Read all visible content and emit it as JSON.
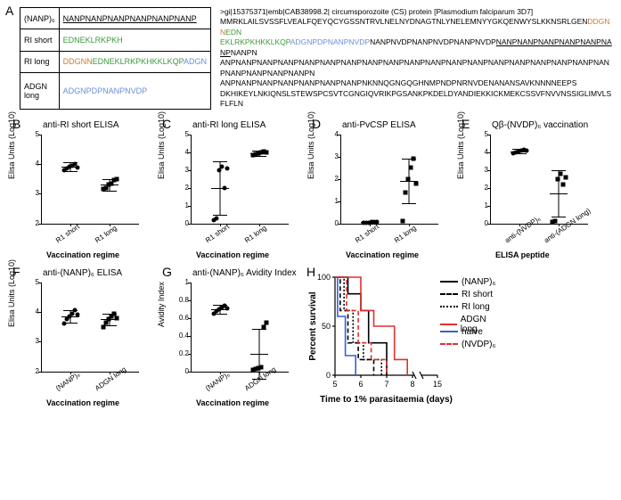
{
  "panelA": {
    "label": "A",
    "table": {
      "rows": [
        {
          "name": "(NANP)₆",
          "seq": [
            {
              "text": "NANPNANPNANPNANPNANPNANP",
              "underline": true,
              "color": "#000000"
            }
          ]
        },
        {
          "name": "RI short",
          "seq": [
            {
              "text": "EDNEKLRKPKH",
              "color": "#3a9a3a"
            }
          ]
        },
        {
          "name": "RI long",
          "seq": [
            {
              "text": "DDGNN",
              "color": "#cc7a29"
            },
            {
              "text": "EDNEKLRKPKHKKLKQP",
              "color": "#3a9a3a"
            },
            {
              "text": "ADGN",
              "color": "#6a8fd8"
            }
          ]
        },
        {
          "name": "ADGN long",
          "seq": [
            {
              "text": "ADGNPDPNANPNVDP",
              "color": "#6a8fd8"
            }
          ]
        }
      ]
    },
    "protein": {
      "header": ">gi|15375371|emb|CAB38998.2| circumsporozoite (CS) protein [Plasmodium falciparum 3D7]",
      "segments": [
        {
          "text": "MMRKLAILSVSSFLVEALFQEYQCYGSSNTRVLNELNYDNAGTNLYNELEMNYYGKQENWYSLKKNSRLGEN",
          "color": "#000000"
        },
        {
          "text": "DDGNN",
          "color": "#cc7a29"
        },
        {
          "text": "EDN",
          "color": "#3a9a3a",
          "break": true
        },
        {
          "text": "EKLRKPKHKKLKQP",
          "color": "#3a9a3a"
        },
        {
          "text": "ADGNPDPNANPNVDP",
          "color": "#6a8fd8"
        },
        {
          "text": "NANPNVDPNANPNVDPNANPNVDP",
          "color": "#000000"
        },
        {
          "text": "NANPNANPNANPNANPNANPNANP",
          "color": "#000000",
          "underline": true
        },
        {
          "text": "NANPN",
          "color": "#000000",
          "break": true
        },
        {
          "text": "ANPNANPNANPNANPNANPNANPNANPNANPNANPNANPNANPNANPNANPNANPNANPNANPNANPNANPNANPNANPNANPNANPNANPN",
          "color": "#000000",
          "break": true
        },
        {
          "text": "ANPNANPNANPNANPNANPNANPNANPNKNNQGNGQGHNMPNDPNRNVDENANANSAVKNNNNEEPS",
          "color": "#000000",
          "break": true
        },
        {
          "text": "DKHIKEYLNKIQNSLSTEWSPCSVTCGNGIQVRIKPGSANKPKDELDYANDIEKKICKMEKCSSVFNVVNSSIGLIMVLSFLFLN",
          "color": "#000000"
        }
      ]
    }
  },
  "scatterCharts": [
    {
      "id": "B",
      "title": "anti-RI short ELISA",
      "ylabel": "Elisa Units (Log10)",
      "xlabel": "Vaccination regime",
      "ymin": 2,
      "ymax": 5,
      "yticks": [
        2,
        3,
        4,
        5
      ],
      "categories": [
        "R1 short",
        "R1 long"
      ],
      "groups": [
        {
          "cat": 0,
          "marker": "circle",
          "mean": 3.9,
          "sd": 0.15,
          "points": [
            3.8,
            3.85,
            3.9,
            3.95,
            4.0,
            3.88
          ]
        },
        {
          "cat": 1,
          "marker": "square",
          "mean": 3.3,
          "sd": 0.2,
          "points": [
            3.15,
            3.2,
            3.3,
            3.35,
            3.45,
            3.5
          ]
        }
      ]
    },
    {
      "id": "C",
      "title": "anti-RI long ELISA",
      "ylabel": "Elisa Units (Log10)",
      "xlabel": "Vaccination regime",
      "ymin": 0,
      "ymax": 5,
      "yticks": [
        0,
        1,
        2,
        3,
        4,
        5
      ],
      "categories": [
        "R1 short",
        "R1 long"
      ],
      "groups": [
        {
          "cat": 0,
          "marker": "circle",
          "mean": 2.0,
          "sd": 1.5,
          "points": [
            0.2,
            0.3,
            3.0,
            3.2,
            2.0,
            3.1
          ]
        },
        {
          "cat": 1,
          "marker": "square",
          "mean": 3.95,
          "sd": 0.15,
          "points": [
            3.85,
            3.9,
            3.95,
            4.0,
            4.05,
            3.98
          ]
        }
      ]
    },
    {
      "id": "D",
      "title": "anti-PvCSP ELISA",
      "ylabel": "Elisa Units (Log10)",
      "xlabel": "Vaccination regime",
      "ymin": 0,
      "ymax": 4,
      "yticks": [
        0,
        1,
        2,
        3,
        4
      ],
      "categories": [
        "R1 short",
        "R1 long"
      ],
      "groups": [
        {
          "cat": 0,
          "marker": "circle",
          "mean": 0.05,
          "sd": 0.05,
          "points": [
            0.02,
            0.03,
            0.04,
            0.05,
            0.06,
            0.07
          ]
        },
        {
          "cat": 1,
          "marker": "square",
          "mean": 1.9,
          "sd": 1.0,
          "points": [
            0.1,
            1.4,
            2.0,
            2.5,
            2.9,
            1.8
          ]
        }
      ]
    },
    {
      "id": "E",
      "title": "Qβ-(NVDP)₆ vaccination",
      "ylabel": "Elisa Units (Log10)",
      "xlabel": "ELISA peptide",
      "ymin": 0,
      "ymax": 5,
      "yticks": [
        0,
        1,
        2,
        3,
        4,
        5
      ],
      "categories": [
        "anti-(NVDP)₆",
        "anti-(ADGN long)"
      ],
      "groups": [
        {
          "cat": 0,
          "marker": "circle",
          "mean": 4.05,
          "sd": 0.12,
          "points": [
            3.95,
            4.0,
            4.05,
            4.1,
            4.12,
            4.08
          ]
        },
        {
          "cat": 1,
          "marker": "square",
          "mean": 1.7,
          "sd": 1.3,
          "points": [
            0.1,
            0.15,
            2.5,
            2.8,
            2.2,
            2.6
          ]
        }
      ]
    },
    {
      "id": "F",
      "title": "anti-(NANP)₆ ELISA",
      "ylabel": "Elisa Units (Log10)",
      "xlabel": "Vaccination regime",
      "ymin": 2,
      "ymax": 5,
      "yticks": [
        2,
        3,
        4,
        5
      ],
      "categories": [
        "(NANP)₆",
        "ADGN long"
      ],
      "groups": [
        {
          "cat": 0,
          "marker": "circle",
          "mean": 3.85,
          "sd": 0.2,
          "points": [
            3.6,
            3.75,
            3.85,
            3.95,
            4.05,
            3.9
          ]
        },
        {
          "cat": 1,
          "marker": "square",
          "mean": 3.75,
          "sd": 0.2,
          "points": [
            3.5,
            3.65,
            3.75,
            3.85,
            3.95,
            3.8
          ]
        }
      ]
    },
    {
      "id": "G",
      "title": "anti-(NANP)₆ Avidity Index",
      "ylabel": "Avidity Index",
      "xlabel": "Vaccination regime",
      "ymin": 0,
      "ymax": 1,
      "yticks": [
        0,
        0.2,
        0.4,
        0.6,
        0.8,
        1.0
      ],
      "categories": [
        "(NANP)₆",
        "ADGN long"
      ],
      "groups": [
        {
          "cat": 0,
          "marker": "circle",
          "mean": 0.7,
          "sd": 0.05,
          "points": [
            0.65,
            0.68,
            0.7,
            0.72,
            0.74,
            0.71
          ]
        },
        {
          "cat": 1,
          "marker": "square",
          "mean": 0.2,
          "sd": 0.28,
          "points": [
            0.02,
            0.03,
            0.04,
            0.05,
            0.5,
            0.55
          ]
        }
      ]
    }
  ],
  "survival": {
    "id": "H",
    "ylabel": "Percent survival",
    "xlabel": "Time to 1% parasitaemia (days)",
    "xmin": 5,
    "xmax": 15,
    "xbreak_from": 8,
    "xbreak_to": 15,
    "xticks": [
      5,
      6,
      7,
      8,
      15
    ],
    "yticks": [
      0,
      50,
      100
    ],
    "series": [
      {
        "name": "(NANP)₆",
        "color": "#000000",
        "dash": "solid",
        "points": [
          [
            5,
            100
          ],
          [
            5.5,
            100
          ],
          [
            5.5,
            83
          ],
          [
            6.0,
            83
          ],
          [
            6.0,
            66
          ],
          [
            6.3,
            66
          ],
          [
            6.3,
            33
          ],
          [
            7.0,
            33
          ],
          [
            7.0,
            0
          ]
        ]
      },
      {
        "name": "RI short",
        "color": "#000000",
        "dash": "dash",
        "points": [
          [
            5,
            100
          ],
          [
            5.2,
            100
          ],
          [
            5.2,
            66
          ],
          [
            5.5,
            66
          ],
          [
            5.5,
            33
          ],
          [
            5.9,
            33
          ],
          [
            5.9,
            16
          ],
          [
            6.5,
            16
          ],
          [
            6.5,
            0
          ]
        ]
      },
      {
        "name": "RI long",
        "color": "#000000",
        "dash": "dot",
        "points": [
          [
            5,
            100
          ],
          [
            5.35,
            100
          ],
          [
            5.35,
            66
          ],
          [
            5.7,
            66
          ],
          [
            5.7,
            33
          ],
          [
            6.1,
            33
          ],
          [
            6.1,
            16
          ],
          [
            6.8,
            16
          ],
          [
            6.8,
            0
          ]
        ]
      },
      {
        "name": "ADGN long",
        "color": "#e03030",
        "dash": "solid",
        "points": [
          [
            5,
            100
          ],
          [
            6.0,
            100
          ],
          [
            6.0,
            66
          ],
          [
            6.5,
            66
          ],
          [
            6.5,
            50
          ],
          [
            7.3,
            50
          ],
          [
            7.3,
            16
          ],
          [
            7.8,
            16
          ],
          [
            7.8,
            0
          ]
        ]
      },
      {
        "name": "naive",
        "color": "#3a5fd0",
        "dash": "solid",
        "points": [
          [
            5,
            100
          ],
          [
            5.1,
            100
          ],
          [
            5.1,
            60
          ],
          [
            5.4,
            60
          ],
          [
            5.4,
            20
          ],
          [
            5.8,
            20
          ],
          [
            5.8,
            0
          ]
        ]
      },
      {
        "name": "(NVDP)₆",
        "color": "#e03030",
        "dash": "dash",
        "points": [
          [
            5,
            100
          ],
          [
            5.45,
            100
          ],
          [
            5.45,
            66
          ],
          [
            5.9,
            66
          ],
          [
            5.9,
            33
          ],
          [
            6.4,
            33
          ],
          [
            6.4,
            16
          ],
          [
            7.0,
            16
          ],
          [
            7.0,
            0
          ]
        ]
      }
    ]
  }
}
